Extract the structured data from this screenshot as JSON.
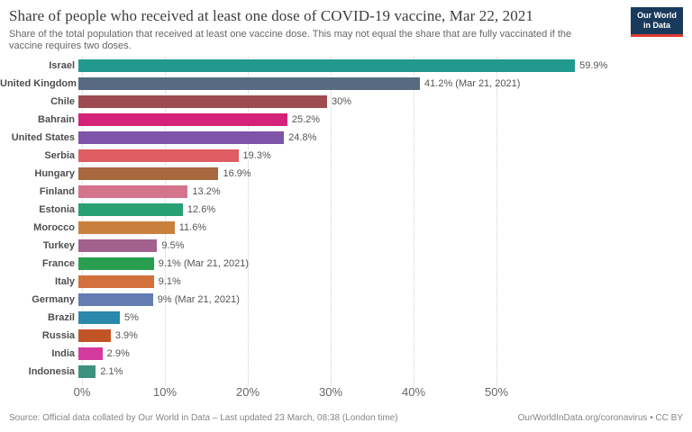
{
  "header": {
    "title": "Share of people who received at least one dose of COVID-19 vaccine, Mar 22, 2021",
    "subtitle": "Share of the total population that received at least one vaccine dose. This may not equal the share that are fully vaccinated if the vaccine requires two doses.",
    "logo": {
      "line1": "Our World",
      "line2": "in Data",
      "bg_color": "#1a3a5c",
      "stripe_color": "#dc3b2e"
    }
  },
  "chart_data": {
    "type": "bar",
    "orientation": "horizontal",
    "title": "Share of people who received at least one dose of COVID-19 vaccine, Mar 22, 2021",
    "categories": [
      "Israel",
      "United Kingdom",
      "Chile",
      "Bahrain",
      "United States",
      "Serbia",
      "Hungary",
      "Finland",
      "Estonia",
      "Morocco",
      "Turkey",
      "France",
      "Italy",
      "Germany",
      "Brazil",
      "Russia",
      "India",
      "Indonesia"
    ],
    "values": [
      59.9,
      41.2,
      30,
      25.2,
      24.8,
      19.3,
      16.9,
      13.2,
      12.6,
      11.6,
      9.5,
      9.1,
      9.1,
      9,
      5,
      3.9,
      2.9,
      2.1
    ],
    "value_labels": [
      "59.9%",
      "41.2% (Mar 21, 2021)",
      "30%",
      "25.2%",
      "24.8%",
      "19.3%",
      "16.9%",
      "13.2%",
      "12.6%",
      "11.6%",
      "9.5%",
      "9.1% (Mar 21, 2021)",
      "9.1%",
      "9% (Mar 21, 2021)",
      "5%",
      "3.9%",
      "2.9%",
      "2.1%"
    ],
    "bar_colors": [
      "#22998f",
      "#566b80",
      "#9e4b50",
      "#d4217a",
      "#7d54a8",
      "#df5d63",
      "#a8673e",
      "#d4738c",
      "#27a073",
      "#c9803c",
      "#a2618f",
      "#289e51",
      "#d2713c",
      "#637cb2",
      "#2a88ad",
      "#c25327",
      "#d43a9e",
      "#3f917f"
    ],
    "xlabel": "",
    "ylabel": "",
    "xlim": [
      0,
      60
    ],
    "x_tick_values": [
      0,
      10,
      20,
      30,
      40,
      50
    ],
    "x_tick_labels": [
      "0%",
      "10%",
      "20%",
      "30%",
      "40%",
      "50%"
    ],
    "grid": "vertical-dotted",
    "legend": "none"
  },
  "footer": {
    "source": "Source: Official data collated by Our World in Data – Last updated 23 March, 08:38 (London time)",
    "link": "OurWorldInData.org/coronavirus • CC BY"
  }
}
